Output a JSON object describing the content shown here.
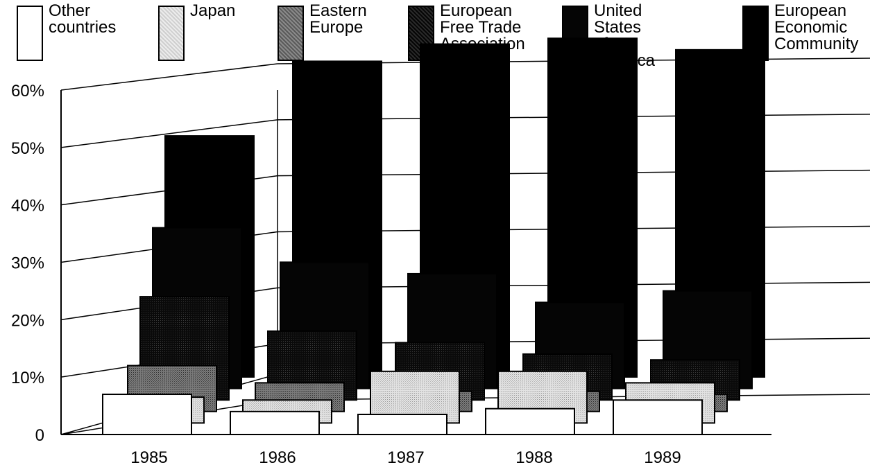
{
  "colors": {
    "other": "#ffffff",
    "japan": "#d4d4d4",
    "eastern_europe": "#6e6e6e",
    "efta": "#141414",
    "usa": "#050505",
    "eec": "#000000"
  },
  "chart_data": {
    "type": "bar",
    "title": "",
    "xlabel": "",
    "ylabel": "",
    "categories": [
      "1985",
      "1986",
      "1987",
      "1988",
      "1989"
    ],
    "y_tick_labels": [
      "0",
      "10%",
      "20%",
      "30%",
      "40%",
      "50%",
      "60%"
    ],
    "ylim": [
      0,
      60
    ],
    "grid": true,
    "legend_position": "top",
    "series": [
      {
        "key": "other",
        "name": "Other\ncountries",
        "values": [
          7,
          4,
          3.5,
          4.5,
          6
        ]
      },
      {
        "key": "japan",
        "name": "Japan",
        "values": [
          4.5,
          4,
          9,
          9,
          7
        ]
      },
      {
        "key": "eastern_europe",
        "name": "Eastern\nEurope",
        "values": [
          8,
          5,
          3.5,
          3.5,
          3
        ]
      },
      {
        "key": "efta",
        "name": "European\nFree Trade\nAssociation",
        "values": [
          18,
          12,
          10,
          8,
          7
        ]
      },
      {
        "key": "usa",
        "name": "United States\nof America",
        "values": [
          28,
          22,
          20,
          15,
          17
        ]
      },
      {
        "key": "eec",
        "name": "European\nEconomic\nCommunity",
        "values": [
          42,
          55,
          58,
          59,
          57
        ]
      }
    ]
  }
}
